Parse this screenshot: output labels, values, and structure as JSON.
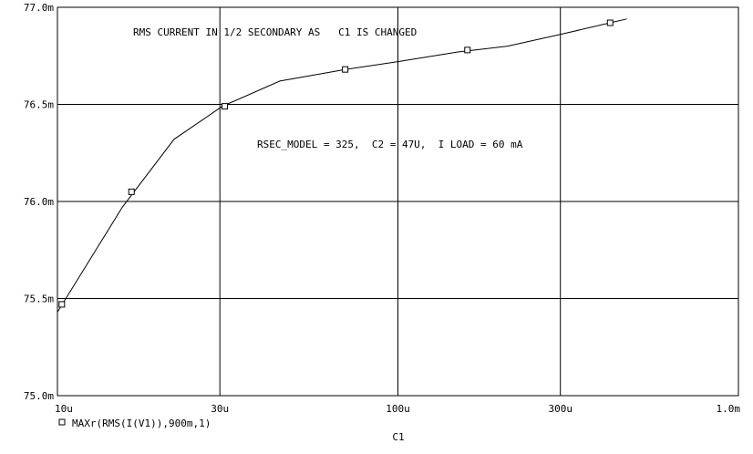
{
  "chart_data": {
    "type": "line",
    "scale": {
      "x": "log",
      "y": "linear"
    },
    "xlabel": "C1",
    "ylabel": "",
    "xlim": [
      "10u",
      "1.0m"
    ],
    "ylim": [
      "75.0m",
      "77.0m"
    ],
    "x_ticks": [
      "10u",
      "30u",
      "100u",
      "300u",
      "1.0m"
    ],
    "y_ticks": [
      "75.0m",
      "75.5m",
      "76.0m",
      "76.5m",
      "77.0m"
    ],
    "grid": true,
    "legend_position": "bottom-left",
    "annotations": [
      "RMS CURRENT IN 1/2 SECONDARY AS   C1 IS CHANGED",
      "RSEC_MODEL = 325,  C2 = 47U,  I LOAD = 60 mA"
    ],
    "series": [
      {
        "name": "MAXr(RMS(I(V1)),900m,1)",
        "color": "#000000",
        "marker": "square",
        "x": [
          "10u",
          "15.5u",
          "22u",
          "30.5u",
          "45u",
          "70u",
          "100u",
          "150u",
          "210u",
          "300u",
          "420u",
          "470u"
        ],
        "y": [
          "75.43m",
          "75.97m",
          "76.32m",
          "76.49m",
          "76.62m",
          "76.68m",
          "76.72m",
          "76.77m",
          "76.80m",
          "76.86m",
          "76.92m",
          "76.94m"
        ],
        "markers": [
          {
            "x": "10.3u",
            "y": "75.47m"
          },
          {
            "x": "16.5u",
            "y": "76.05m"
          },
          {
            "x": "31u",
            "y": "76.49m"
          },
          {
            "x": "70u",
            "y": "76.68m"
          },
          {
            "x": "160u",
            "y": "76.78m"
          },
          {
            "x": "420u",
            "y": "76.92m"
          }
        ]
      }
    ]
  }
}
